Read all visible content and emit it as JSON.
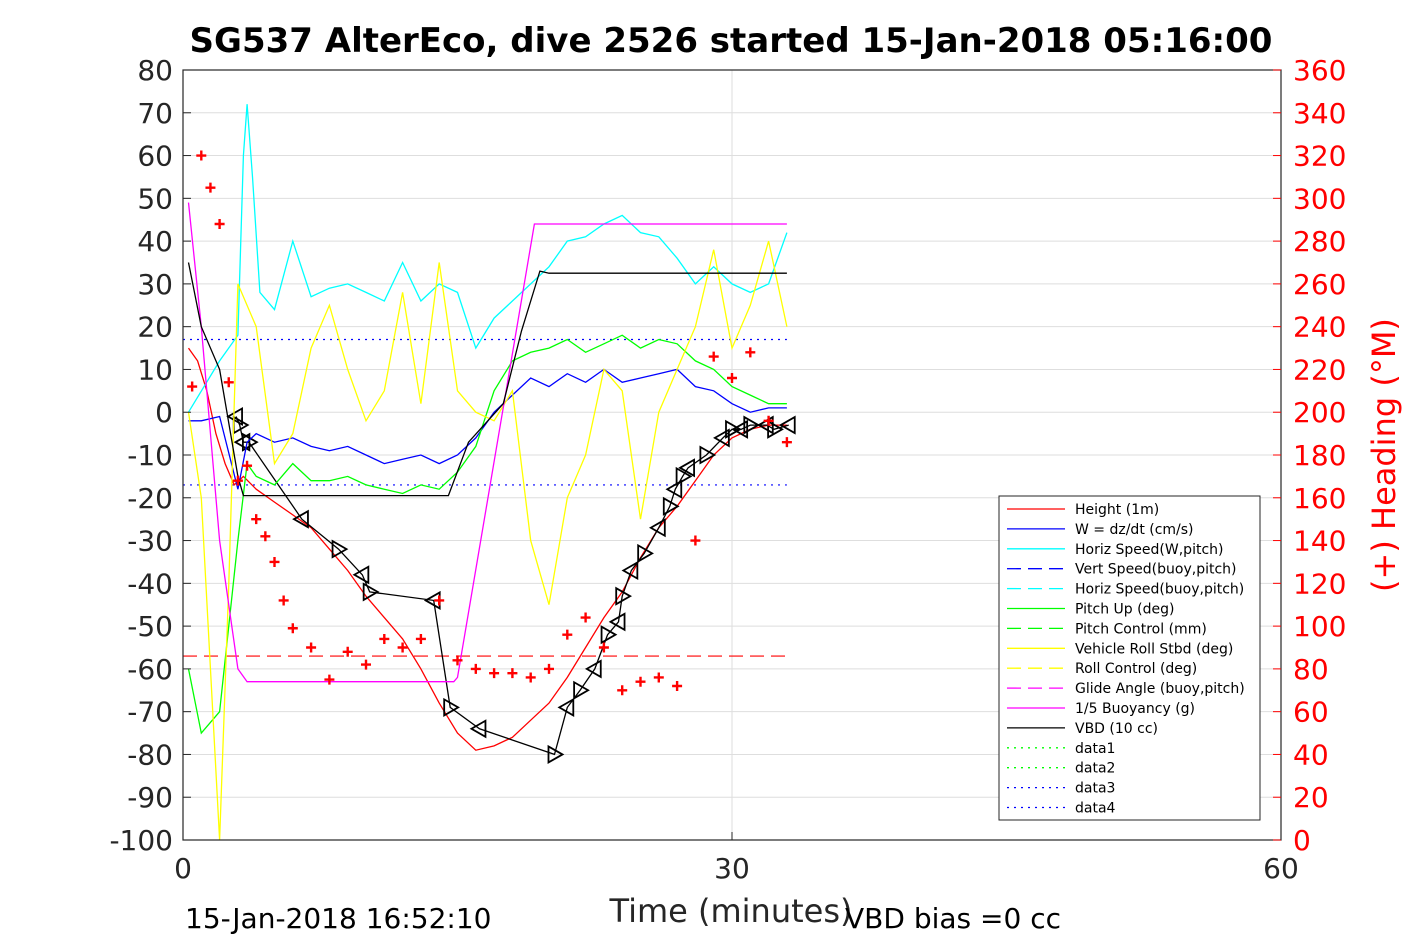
{
  "chart_data": {
    "type": "line",
    "title": "SG537 AlterEco, dive 2526 started 15-Jan-2018 05:16:00",
    "xlabel": "Time (minutes)",
    "ylabel_right": "(+) Heading (°M)",
    "footer_left": "15-Jan-2018 16:52:10",
    "footer_right": "VBD bias =0 cc",
    "xlim": [
      0,
      60
    ],
    "ylim": [
      -100,
      80
    ],
    "ylim_right": [
      0,
      360
    ],
    "xticks": [
      "0",
      "30",
      "60"
    ],
    "yticks": [
      "80",
      "70",
      "60",
      "50",
      "40",
      "30",
      "20",
      "10",
      "0",
      "-10",
      "-20",
      "-30",
      "-40",
      "-50",
      "-60",
      "-70",
      "-80",
      "-90",
      "-100"
    ],
    "yticks_right": [
      "360",
      "340",
      "320",
      "300",
      "280",
      "260",
      "240",
      "220",
      "200",
      "180",
      "160",
      "140",
      "120",
      "100",
      "80",
      "60",
      "40",
      "20",
      "0"
    ],
    "grid": true,
    "legend_position": "bottom-right",
    "legend": [
      {
        "name": "Height (1m)",
        "color": "#ff0000",
        "dash": "solid"
      },
      {
        "name": "W = dz/dt (cm/s)",
        "color": "#0000ff",
        "dash": "solid"
      },
      {
        "name": "Horiz Speed(W,pitch)",
        "color": "#00ffff",
        "dash": "solid"
      },
      {
        "name": "Vert Speed(buoy,pitch)",
        "color": "#0000ff",
        "dash": "dashed"
      },
      {
        "name": "Horiz Speed(buoy,pitch)",
        "color": "#00ffff",
        "dash": "dashed"
      },
      {
        "name": "Pitch Up (deg)",
        "color": "#00ff00",
        "dash": "solid"
      },
      {
        "name": "Pitch Control (mm)",
        "color": "#00ff00",
        "dash": "dashed"
      },
      {
        "name": "Vehicle Roll Stbd (deg)",
        "color": "#ffff00",
        "dash": "solid"
      },
      {
        "name": "Roll Control (deg)",
        "color": "#ffff00",
        "dash": "dashed"
      },
      {
        "name": "Glide Angle (buoy,pitch)",
        "color": "#ff00ff",
        "dash": "dashed"
      },
      {
        "name": "1/5 Buoyancy (g)",
        "color": "#ff00ff",
        "dash": "solid"
      },
      {
        "name": "VBD (10 cc)",
        "color": "#000000",
        "dash": "solid"
      },
      {
        "name": "data1",
        "color": "#00ff00",
        "dash": "dotted"
      },
      {
        "name": "data2",
        "color": "#00ff00",
        "dash": "dotted"
      },
      {
        "name": "data3",
        "color": "#0000ff",
        "dash": "dotted"
      },
      {
        "name": "data4",
        "color": "#0000ff",
        "dash": "dotted"
      }
    ],
    "series": [
      {
        "name": "Height (1m)",
        "color": "#ff0000",
        "x": [
          0.3,
          0.8,
          1.3,
          1.8,
          2.3,
          2.8,
          3.3,
          4,
          5,
          6,
          7,
          8,
          9,
          10,
          11,
          12,
          13,
          14,
          15,
          16,
          17,
          18,
          19,
          20,
          21,
          22,
          23,
          24,
          25,
          26,
          27,
          28,
          29,
          30,
          31,
          32,
          33
        ],
        "y": [
          15,
          12,
          5,
          -5,
          -12,
          -17,
          -15,
          -18,
          -21,
          -24,
          -27,
          -32,
          -37,
          -43,
          -48,
          -53,
          -60,
          -68,
          -75,
          -79,
          -78,
          -76,
          -72,
          -68,
          -62,
          -55,
          -48,
          -42,
          -34,
          -27,
          -22,
          -16,
          -10,
          -6,
          -4,
          -3,
          -3
        ]
      },
      {
        "name": "Glider path (depth/10, m)",
        "color": "#000000",
        "x": [
          2.9,
          3.1,
          3.3,
          3.6,
          6.5,
          8.5,
          9.8,
          10.2,
          13.7,
          14.6,
          16.2,
          20.3,
          21,
          21.7,
          22.5,
          23.2,
          23.8,
          24,
          24.5,
          25.2,
          26,
          26.6,
          26.9,
          27.3,
          27.6,
          28.6,
          29.5,
          30,
          30.5,
          31,
          31.9,
          32.3,
          33.1
        ],
        "y": [
          -1,
          -3,
          -7,
          -7,
          -25,
          -32,
          -38,
          -42,
          -44,
          -69,
          -74,
          -80,
          -69,
          -65,
          -60,
          -52,
          -49,
          -43,
          -37,
          -33,
          -27,
          -22,
          -18,
          -15,
          -13,
          -10,
          -6,
          -4,
          -4,
          -3,
          -3,
          -4,
          -3
        ]
      },
      {
        "name": "W = dz/dt (cm/s)",
        "color": "#0000ff",
        "x": [
          0.3,
          1,
          2,
          3,
          3.5,
          4,
          5,
          6,
          7,
          8,
          9,
          10,
          11,
          12,
          13,
          14,
          15,
          16,
          17,
          18,
          19,
          20,
          21,
          22,
          23,
          24,
          25,
          26,
          27,
          28,
          29,
          30,
          31,
          32,
          33
        ],
        "y": [
          -2,
          -2,
          -1,
          -18,
          -7,
          -5,
          -7,
          -6,
          -8,
          -9,
          -8,
          -10,
          -12,
          -11,
          -10,
          -12,
          -10,
          -6,
          0,
          4,
          8,
          6,
          9,
          7,
          10,
          7,
          8,
          9,
          10,
          6,
          5,
          2,
          0,
          1,
          1
        ]
      },
      {
        "name": "Horiz Speed(W,pitch)",
        "color": "#00ffff",
        "x": [
          0.3,
          2,
          3,
          3.3,
          3.5,
          3.8,
          4.2,
          5,
          6,
          7,
          8,
          9,
          10,
          11,
          12,
          13,
          14,
          15,
          16,
          17,
          18,
          19,
          20,
          21,
          22,
          23,
          24,
          25,
          26,
          27,
          28,
          29,
          30,
          31,
          32,
          33
        ],
        "y": [
          0,
          12,
          18,
          60,
          72,
          55,
          28,
          24,
          40,
          27,
          29,
          30,
          28,
          26,
          35,
          26,
          30,
          28,
          15,
          22,
          26,
          30,
          34,
          40,
          41,
          44,
          46,
          42,
          41,
          36,
          30,
          34,
          30,
          28,
          30,
          42
        ]
      },
      {
        "name": "Pitch Up (deg)",
        "color": "#00ff00",
        "x": [
          0.3,
          1,
          2,
          3,
          3.5,
          4,
          5,
          6,
          7,
          8,
          9,
          10,
          11,
          12,
          13,
          14,
          15,
          16,
          17,
          18,
          19,
          20,
          21,
          22,
          23,
          24,
          25,
          26,
          27,
          28,
          29,
          30,
          31,
          32,
          33
        ],
        "y": [
          -60,
          -75,
          -70,
          -30,
          -12,
          -15,
          -17,
          -12,
          -16,
          -16,
          -15,
          -17,
          -18,
          -19,
          -17,
          -18,
          -14,
          -8,
          5,
          12,
          14,
          15,
          17,
          14,
          16,
          18,
          15,
          17,
          16,
          12,
          10,
          6,
          4,
          2,
          2
        ]
      },
      {
        "name": "Vehicle Roll Stbd (deg)",
        "color": "#ffff00",
        "x": [
          0.3,
          1,
          2,
          2.5,
          3,
          4,
          5,
          6,
          7,
          8,
          9,
          10,
          11,
          12,
          13,
          14,
          15,
          16,
          17,
          18,
          19,
          20,
          21,
          22,
          23,
          24,
          25,
          26,
          27,
          28,
          29,
          30,
          31,
          32,
          33
        ],
        "y": [
          0,
          -20,
          -100,
          -40,
          30,
          20,
          -12,
          -5,
          15,
          25,
          10,
          -2,
          5,
          28,
          2,
          35,
          5,
          0,
          -2,
          5,
          -30,
          -45,
          -20,
          -10,
          10,
          5,
          -25,
          0,
          10,
          20,
          38,
          15,
          25,
          40,
          20
        ]
      },
      {
        "name": "1/5 Buoyancy (g)",
        "color": "#ff00ff",
        "x": [
          0.3,
          1,
          2,
          3,
          3.5,
          5,
          10,
          14.8,
          15,
          19.2,
          20,
          25,
          30,
          33
        ],
        "y": [
          49,
          20,
          -30,
          -60,
          -63,
          -63,
          -63,
          -63,
          -62,
          44,
          44,
          44,
          44,
          44
        ]
      },
      {
        "name": "VBD (10 cc)",
        "color": "#000000",
        "x": [
          0.3,
          1,
          2,
          3,
          3.3,
          5,
          10,
          14.5,
          15.6,
          17.5,
          18.5,
          19.5,
          20,
          25,
          30,
          33
        ],
        "y": [
          35,
          20,
          10,
          -15,
          -19.5,
          -19.5,
          -19.5,
          -19.5,
          -7,
          2,
          19,
          33,
          32.5,
          32.5,
          32.5,
          32.5
        ]
      },
      {
        "name": "Heading (°M)",
        "color": "#ff0000",
        "axis": "right",
        "x": [
          0.5,
          1,
          1.5,
          2,
          2.5,
          3,
          3.5,
          4,
          4.5,
          5,
          5.5,
          6,
          7,
          8,
          9,
          10,
          11,
          12,
          13,
          14,
          15,
          16,
          17,
          18,
          19,
          20,
          21,
          22,
          23,
          24,
          25,
          26,
          27,
          28,
          29,
          30,
          31,
          32,
          33
        ],
        "y": [
          212,
          320,
          305,
          288,
          214,
          168,
          175,
          150,
          142,
          130,
          112,
          99,
          90,
          75,
          88,
          82,
          94,
          90,
          94,
          112,
          84,
          80,
          78,
          78,
          76,
          80,
          96,
          104,
          90,
          70,
          74,
          76,
          72,
          140,
          226,
          216,
          228,
          196,
          186
        ]
      }
    ],
    "reference_lines": [
      {
        "name": "data3",
        "y": 17,
        "color": "#0000ff",
        "dash": "dotted"
      },
      {
        "name": "data4",
        "y": -17,
        "color": "#0000ff",
        "dash": "dotted"
      },
      {
        "name": "red dashed level",
        "y": -57,
        "color": "#ff0000",
        "dash": "dashed"
      }
    ]
  }
}
